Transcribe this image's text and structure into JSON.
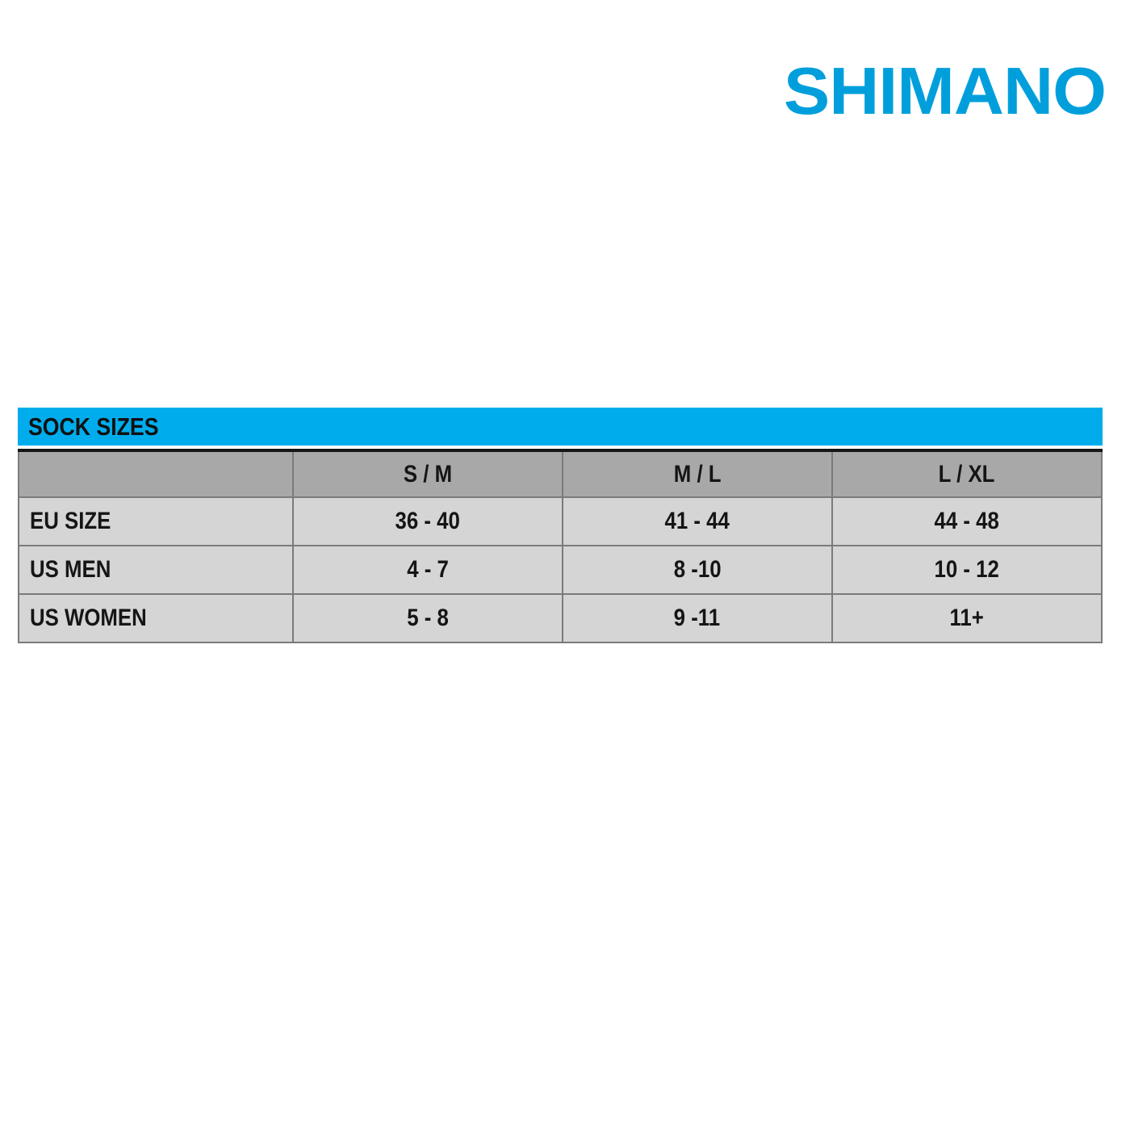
{
  "page": {
    "background_color": "#ffffff"
  },
  "logo": {
    "text": "SHIMANO",
    "color": "#009fdc"
  },
  "size_chart": {
    "title": "SOCK SIZES",
    "title_bar_color": "#00acec",
    "header_row_color": "#a8a8a8",
    "body_row_color": "#d5d5d5",
    "text_color": "#151515",
    "columns": {
      "corner": "",
      "col1": "S / M",
      "col2": "M / L",
      "col3": "L / XL"
    },
    "rows": [
      {
        "label": "EU SIZE",
        "values": [
          "36 - 40",
          "41 - 44",
          "44 - 48"
        ]
      },
      {
        "label": "US MEN",
        "values": [
          "4 - 7",
          "8 -10",
          "10 - 12"
        ]
      },
      {
        "label": "US WOMEN",
        "values": [
          "5 - 8",
          "9 -11",
          "11+"
        ]
      }
    ]
  },
  "chart_data": {
    "type": "table",
    "title": "SOCK SIZES",
    "columns": [
      "",
      "S / M",
      "M / L",
      "L / XL"
    ],
    "rows": [
      [
        "EU SIZE",
        "36 - 40",
        "41 - 44",
        "44 - 48"
      ],
      [
        "US MEN",
        "4 - 7",
        "8 -10",
        "10 - 12"
      ],
      [
        "US WOMEN",
        "5 - 8",
        "9 -11",
        "11+"
      ]
    ]
  }
}
